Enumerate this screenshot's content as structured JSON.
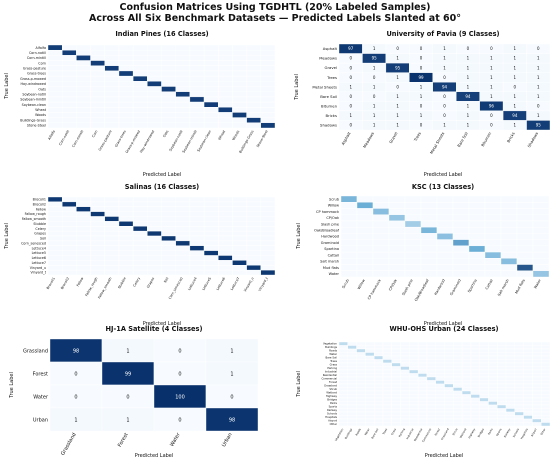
{
  "figure": {
    "title_line1": "Confusion Matrices Using TGDHTL (20% Labeled Samples)",
    "title_line2": "Across All Six Benchmark Datasets — Predicted Labels Slanted at 60°"
  },
  "colors": {
    "cmap_low": "#f7fbff",
    "cmap_mid": "#6baed6",
    "cmap_high": "#08306b",
    "grid_line": "#ffffff",
    "text_dark": "#111111",
    "text_light": "#ffffff"
  },
  "chart_data": [
    {
      "type": "heatmap",
      "title": "Indian Pines (16 Classes)",
      "xlabel": "Predicted Label",
      "ylabel": "True Label",
      "classes": [
        "Alfalfa",
        "Corn-notill",
        "Corn-mintill",
        "Corn",
        "Grass-pasture",
        "Grass-trees",
        "Grass-p-mowed",
        "Hay-windrowed",
        "Oats",
        "Soybean-notill",
        "Soybean-mintill",
        "Soybean-clean",
        "Wheat",
        "Woods",
        "Buildings-Grass",
        "Stone-Steel"
      ],
      "diagonal": 95,
      "off_diagonal": 0,
      "show_values": false,
      "vmax": 100
    },
    {
      "type": "heatmap",
      "title": "University of Pavia (9 Classes)",
      "xlabel": "Predicted Label",
      "ylabel": "True Label",
      "classes": [
        "Asphalt",
        "Meadows",
        "Gravel",
        "Trees",
        "Metal Sheets",
        "Bare Soil",
        "Bitumen",
        "Bricks",
        "Shadows"
      ],
      "matrix": [
        [
          97,
          1,
          0,
          0,
          1,
          0,
          0,
          1,
          0
        ],
        [
          0,
          95,
          1,
          0,
          1,
          1,
          1,
          1,
          1
        ],
        [
          0,
          1,
          95,
          0,
          1,
          1,
          1,
          1,
          1
        ],
        [
          0,
          0,
          1,
          99,
          0,
          1,
          1,
          1,
          1
        ],
        [
          1,
          1,
          0,
          1,
          94,
          1,
          1,
          0,
          1
        ],
        [
          0,
          0,
          1,
          1,
          0,
          94,
          1,
          1,
          1
        ],
        [
          0,
          1,
          1,
          0,
          0,
          1,
          96,
          1,
          0
        ],
        [
          1,
          1,
          1,
          1,
          0,
          1,
          0,
          94,
          1
        ],
        [
          0,
          1,
          1,
          0,
          1,
          1,
          0,
          1,
          95
        ]
      ],
      "show_values": true,
      "vmax": 100
    },
    {
      "type": "heatmap",
      "title": "Salinas (16 Classes)",
      "xlabel": "Predicted Label",
      "ylabel": "True Label",
      "classes": [
        "Brocoli1",
        "Brocoli2",
        "Fallow",
        "Fallow_rough",
        "Fallow_smooth",
        "Stubble",
        "Celery",
        "Grapes",
        "Soil",
        "Corn_senesced",
        "Lettuce4",
        "Lettuce5",
        "Lettuce6",
        "Lettuce7",
        "Vinyard_u",
        "Vinyard_t"
      ],
      "diagonal": 97,
      "off_diagonal": 0,
      "show_values": false,
      "vmax": 100
    },
    {
      "type": "heatmap",
      "title": "KSC (13 Classes)",
      "xlabel": "Predicted Label",
      "ylabel": "True Label",
      "classes": [
        "Scrub",
        "Willow",
        "CP hammock",
        "CP/Oak",
        "Slash pine",
        "Oak/Broadleaf",
        "Hardwood",
        "Graminoid",
        "Spartina",
        "Cattail",
        "Salt marsh",
        "Mud flats",
        "Water"
      ],
      "diagonal_values": [
        45,
        50,
        40,
        35,
        30,
        45,
        38,
        55,
        50,
        40,
        40,
        85,
        35
      ],
      "off_diagonal": 0,
      "show_values": false,
      "vmax": 100
    },
    {
      "type": "heatmap",
      "title": "HJ-1A Satellite (4 Classes)",
      "xlabel": "Predicted Label",
      "ylabel": "True Label",
      "classes": [
        "Grassland",
        "Forest",
        "Water",
        "Urban"
      ],
      "matrix": [
        [
          98,
          1,
          0,
          1
        ],
        [
          0,
          99,
          0,
          1
        ],
        [
          0,
          0,
          100,
          0
        ],
        [
          1,
          1,
          0,
          98
        ]
      ],
      "show_values": true,
      "vmax": 100
    },
    {
      "type": "heatmap",
      "title": "WHU-OHS Urban (24 Classes)",
      "xlabel": "Predicted Label",
      "ylabel": "True Label",
      "classes": [
        "Vegetation",
        "Buildings",
        "Roads",
        "Water",
        "Bare Soil",
        "Trees",
        "Grass",
        "Parking",
        "Industrial",
        "Residential",
        "Commercial",
        "Forest",
        "Grassland",
        "Shrub",
        "Wetland",
        "Highway",
        "Bridges",
        "Parks",
        "Sports",
        "Railway",
        "Schools",
        "Hospitals",
        "Airport",
        "Other"
      ],
      "diagonal": 20,
      "off_diagonal": 0,
      "show_values": false,
      "vmax": 100
    }
  ]
}
